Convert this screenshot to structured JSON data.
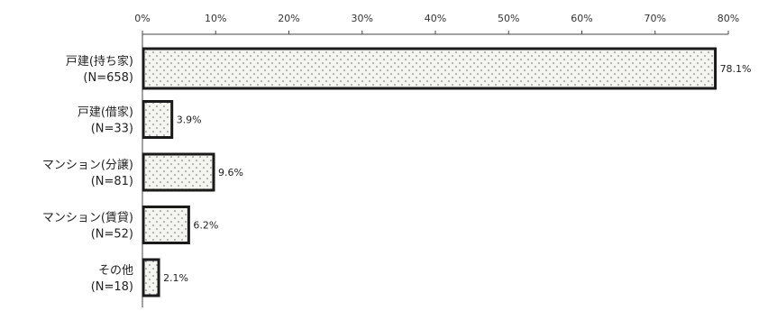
{
  "chart_data": {
    "type": "bar",
    "orientation": "horizontal",
    "title": "",
    "xlabel": "",
    "ylabel": "",
    "xlim": [
      0,
      80
    ],
    "x_ticks": [
      "0%",
      "10%",
      "20%",
      "30%",
      "40%",
      "50%",
      "60%",
      "70%",
      "80%"
    ],
    "grid": false,
    "categories": [
      {
        "name": "戸建(持ち家)",
        "n": "(N=658)"
      },
      {
        "name": "戸建(借家)",
        "n": "(N=33)"
      },
      {
        "name": "マンション(分譲)",
        "n": "(N=81)"
      },
      {
        "name": "マンション(賃貸)",
        "n": "(N=52)"
      },
      {
        "name": "その他",
        "n": "(N=18)"
      }
    ],
    "values": [
      78.1,
      3.9,
      9.6,
      6.2,
      2.1
    ],
    "value_labels": [
      "78.1%",
      "3.9%",
      "9.6%",
      "6.2%",
      "2.1%"
    ],
    "colors": {
      "bar_fill": "#f4f4f0",
      "bar_dots": "#6a6a6a",
      "bar_border": "#1a1a1a",
      "axis": "#444444"
    }
  }
}
